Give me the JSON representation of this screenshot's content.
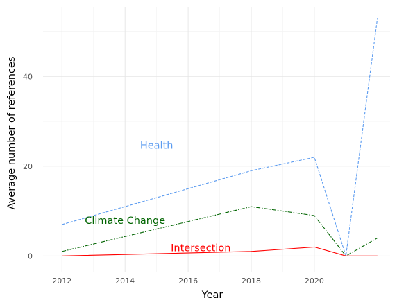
{
  "chart_data": {
    "type": "line",
    "xlabel": "Year",
    "ylabel": "Average number of references",
    "xlim": [
      2011.4,
      2022.4
    ],
    "ylim": [
      -3.5,
      55.5
    ],
    "x_ticks": [
      2012,
      2014,
      2016,
      2018,
      2020
    ],
    "x_tick_labels": [
      "2012",
      "2014",
      "2016",
      "2018",
      "2020"
    ],
    "y_ticks": [
      0,
      20,
      40
    ],
    "y_tick_labels": [
      "0",
      "20",
      "40"
    ],
    "grid": true,
    "legend": "none",
    "series": [
      {
        "name": "Health",
        "color": "#5b9bf0",
        "dash": "dashed",
        "x": [
          2012,
          2018,
          2020,
          2021,
          2022
        ],
        "y": [
          7,
          19,
          22,
          0,
          53
        ],
        "label": {
          "text": "Health",
          "at": [
            2015,
            24.7
          ]
        }
      },
      {
        "name": "Climate Change",
        "color": "#006400",
        "dash": "dashdot",
        "x": [
          2012,
          2018,
          2020,
          2021,
          2022
        ],
        "y": [
          1,
          11,
          9,
          0,
          4
        ],
        "label": {
          "text": "Climate Change",
          "at": [
            2014,
            7.9
          ]
        }
      },
      {
        "name": "Intersection",
        "color": "#ff0000",
        "dash": "solid",
        "x": [
          2012,
          2018,
          2020,
          2021,
          2022
        ],
        "y": [
          0,
          1,
          2,
          0,
          0
        ],
        "label": {
          "text": "Intersection",
          "at": [
            2016.4,
            1.8
          ]
        }
      }
    ]
  }
}
